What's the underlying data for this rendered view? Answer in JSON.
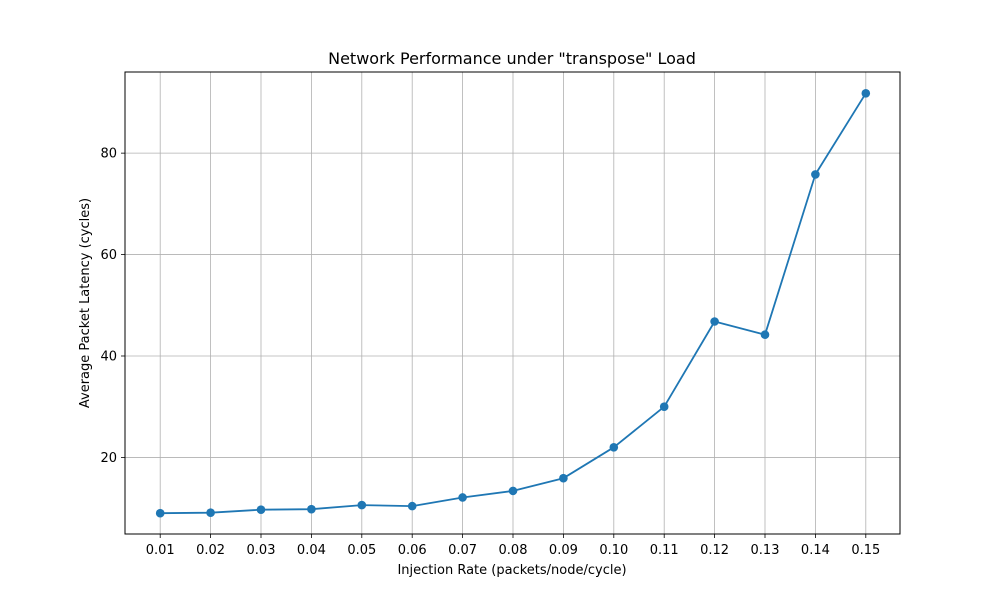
{
  "chart_data": {
    "type": "line",
    "title": "Network Performance under \"transpose\" Load",
    "xlabel": "Injection Rate (packets/node/cycle)",
    "ylabel": "Average Packet Latency (cycles)",
    "categories": [
      "0.01",
      "0.02",
      "0.03",
      "0.04",
      "0.05",
      "0.06",
      "0.07",
      "0.08",
      "0.09",
      "0.10",
      "0.11",
      "0.12",
      "0.13",
      "0.14",
      "0.15"
    ],
    "series": [
      {
        "name": "",
        "values": [
          9.0,
          9.1,
          9.7,
          9.8,
          10.6,
          10.4,
          12.1,
          13.4,
          15.9,
          22.0,
          30.0,
          46.8,
          44.2,
          75.8,
          91.8
        ]
      }
    ],
    "yticks": [
      20,
      40,
      60,
      80
    ],
    "ylim": [
      4.9,
      96.0
    ],
    "grid": true,
    "color": "#1f77b4"
  }
}
